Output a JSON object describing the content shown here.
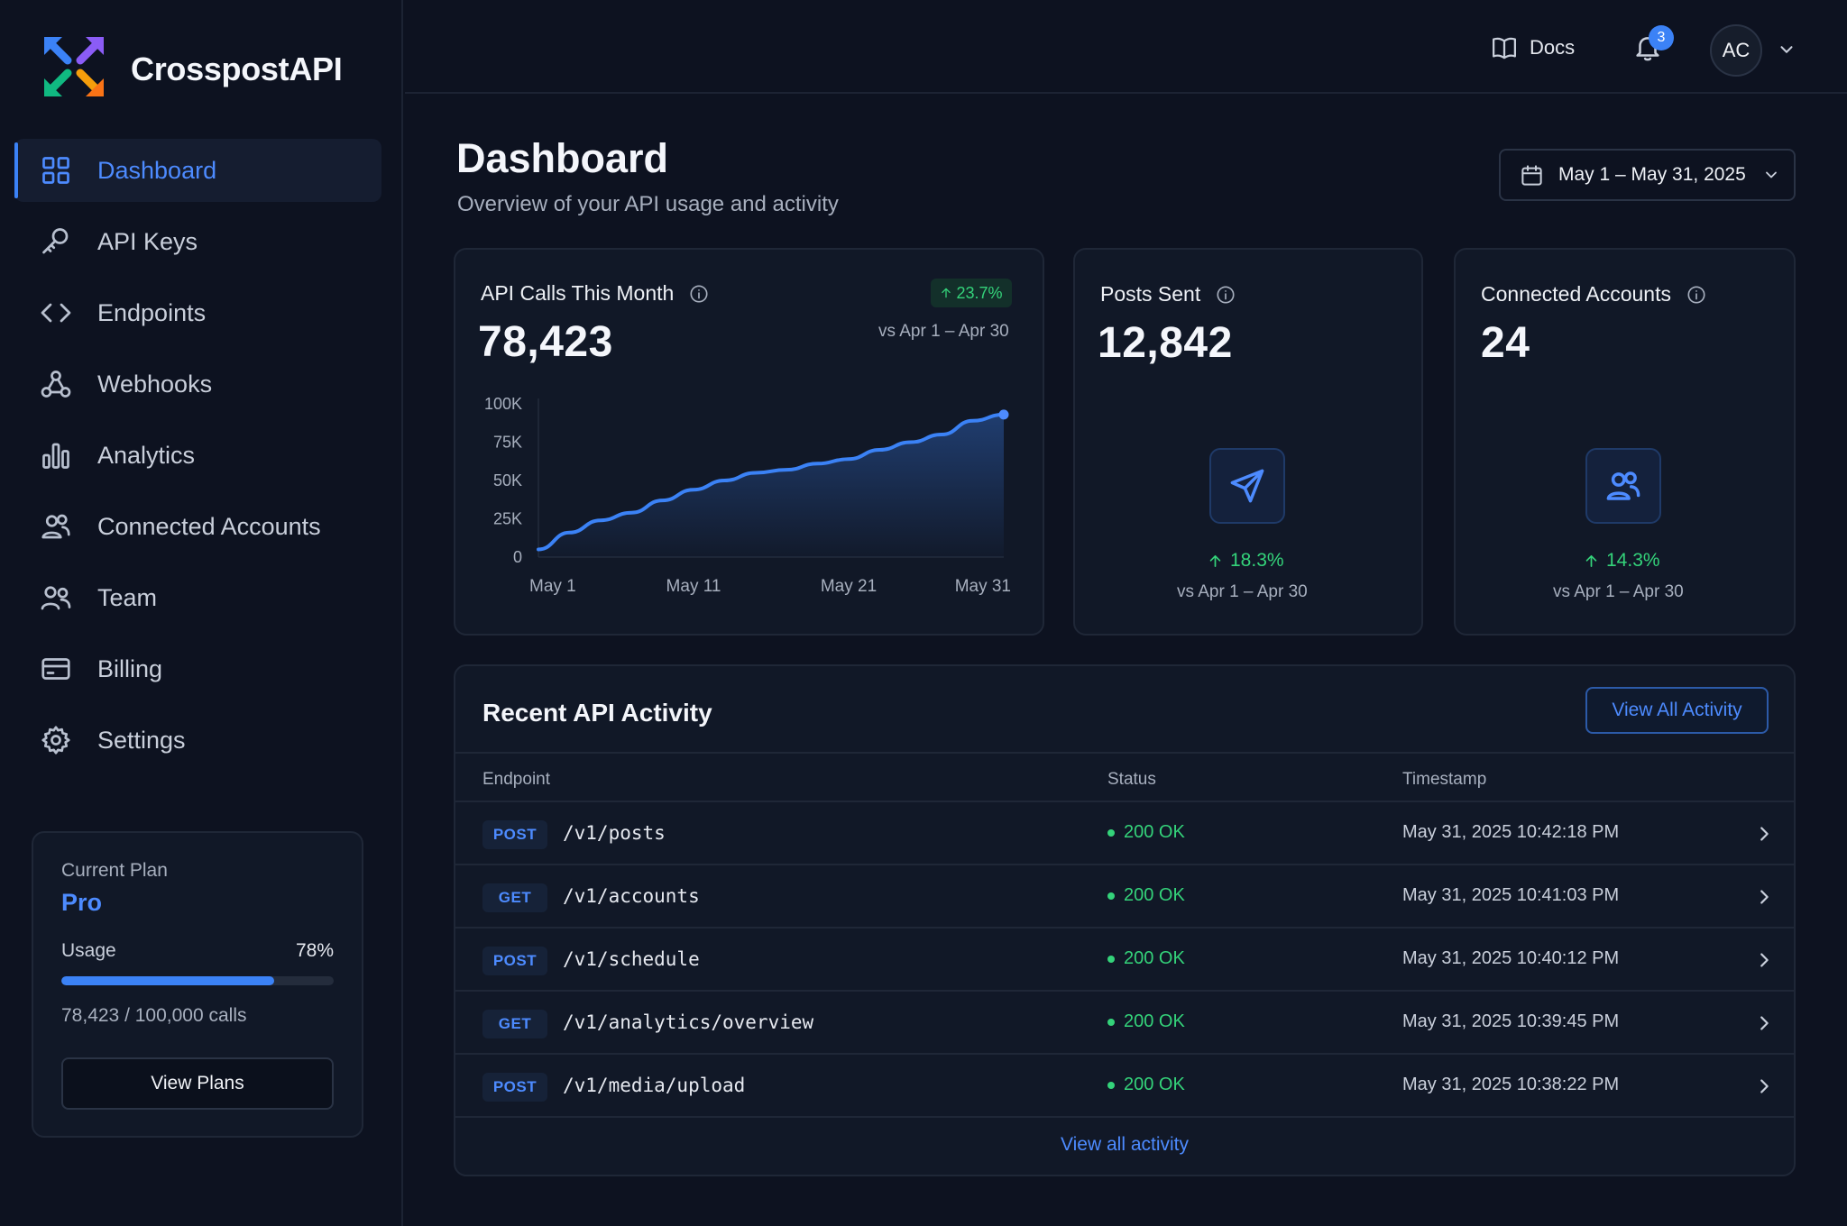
{
  "brand": {
    "name": "CrosspostAPI"
  },
  "sidebar": {
    "items": [
      {
        "label": "Dashboard",
        "icon": "dashboard-icon"
      },
      {
        "label": "API Keys",
        "icon": "key-icon"
      },
      {
        "label": "Endpoints",
        "icon": "code-icon"
      },
      {
        "label": "Webhooks",
        "icon": "webhook-icon"
      },
      {
        "label": "Analytics",
        "icon": "bar-chart-icon"
      },
      {
        "label": "Connected Accounts",
        "icon": "users-icon"
      },
      {
        "label": "Team",
        "icon": "team-icon"
      },
      {
        "label": "Billing",
        "icon": "credit-card-icon"
      },
      {
        "label": "Settings",
        "icon": "gear-icon"
      }
    ],
    "active_index": 0
  },
  "plan": {
    "label": "Current Plan",
    "name": "Pro",
    "usage_label": "Usage",
    "usage_pct_text": "78%",
    "usage_fraction": 0.78,
    "calls": "78,423 / 100,000 calls",
    "button": "View Plans"
  },
  "topbar": {
    "docs": "Docs",
    "notifications": "3",
    "avatar": "AC"
  },
  "page": {
    "title": "Dashboard",
    "subtitle": "Overview of your API usage and activity",
    "date_range": "May 1 – May 31, 2025"
  },
  "cards": {
    "api_calls": {
      "title": "API Calls This Month",
      "value": "78,423",
      "trend": "23.7%",
      "vs": "vs Apr 1 – Apr 30"
    },
    "posts": {
      "title": "Posts Sent",
      "value": "12,842",
      "delta": "18.3%",
      "vs": "vs Apr 1 – Apr 30"
    },
    "accounts": {
      "title": "Connected Accounts",
      "value": "24",
      "delta": "14.3%",
      "vs": "vs Apr 1 – Apr 30"
    }
  },
  "chart_data": {
    "type": "area",
    "x": [
      1,
      3,
      5,
      7,
      9,
      11,
      13,
      15,
      17,
      19,
      21,
      23,
      25,
      27,
      29,
      31
    ],
    "x_ticks": [
      {
        "value": 1,
        "label": "May 1"
      },
      {
        "value": 11,
        "label": "May 11"
      },
      {
        "value": 21,
        "label": "May 21"
      },
      {
        "value": 31,
        "label": "May 31"
      }
    ],
    "y_ticks": [
      {
        "value": 0,
        "label": "0"
      },
      {
        "value": 25000,
        "label": "25K"
      },
      {
        "value": 50000,
        "label": "50K"
      },
      {
        "value": 75000,
        "label": "75K"
      },
      {
        "value": 100000,
        "label": "100K"
      }
    ],
    "values": [
      5000,
      16000,
      24000,
      29000,
      37000,
      44000,
      50000,
      55000,
      57000,
      61000,
      64000,
      70000,
      75000,
      80000,
      89000,
      93000
    ],
    "ylim": [
      0,
      100000
    ],
    "color": "#3b82f6"
  },
  "activity": {
    "title": "Recent API Activity",
    "button": "View All Activity",
    "columns": [
      "Endpoint",
      "Status",
      "Timestamp"
    ],
    "rows": [
      {
        "method": "POST",
        "path": "/v1/posts",
        "status": "200 OK",
        "timestamp": "May 31, 2025 10:42:18 PM"
      },
      {
        "method": "GET",
        "path": "/v1/accounts",
        "status": "200 OK",
        "timestamp": "May 31, 2025 10:41:03 PM"
      },
      {
        "method": "POST",
        "path": "/v1/schedule",
        "status": "200 OK",
        "timestamp": "May 31, 2025 10:40:12 PM"
      },
      {
        "method": "GET",
        "path": "/v1/analytics/overview",
        "status": "200 OK",
        "timestamp": "May 31, 2025 10:39:45 PM"
      },
      {
        "method": "POST",
        "path": "/v1/media/upload",
        "status": "200 OK",
        "timestamp": "May 31, 2025 10:38:22 PM"
      }
    ],
    "footer_link": "View all activity"
  }
}
